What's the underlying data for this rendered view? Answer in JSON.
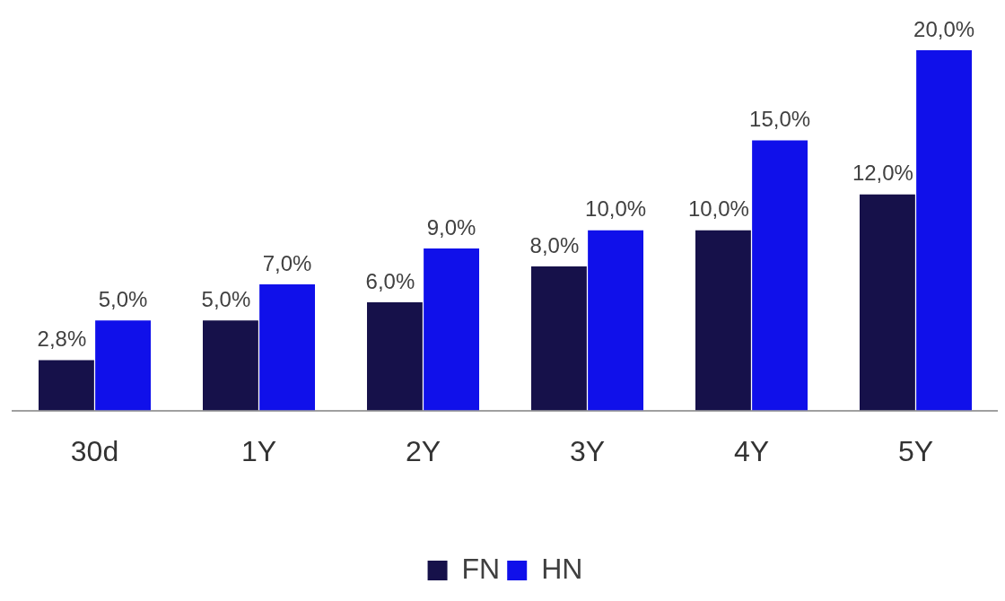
{
  "chart_data": {
    "type": "bar",
    "categories": [
      "30d",
      "1Y",
      "2Y",
      "3Y",
      "4Y",
      "5Y"
    ],
    "series": [
      {
        "name": "FN",
        "color": "#16114a",
        "values": [
          2.8,
          5,
          6,
          8,
          10,
          12
        ],
        "value_labels": [
          "2,8%",
          "5,0%",
          "6,0%",
          "8,0%",
          "10,0%",
          "12,0%"
        ]
      },
      {
        "name": "HN",
        "color": "#1010ea",
        "values": [
          5,
          7,
          9,
          10,
          15,
          20
        ],
        "value_labels": [
          "5,0%",
          "7,0%",
          "9,0%",
          "10,0%",
          "15,0%",
          "20,0%"
        ]
      }
    ],
    "tick_labels": "x",
    "grid": false,
    "legend": "bottom"
  }
}
